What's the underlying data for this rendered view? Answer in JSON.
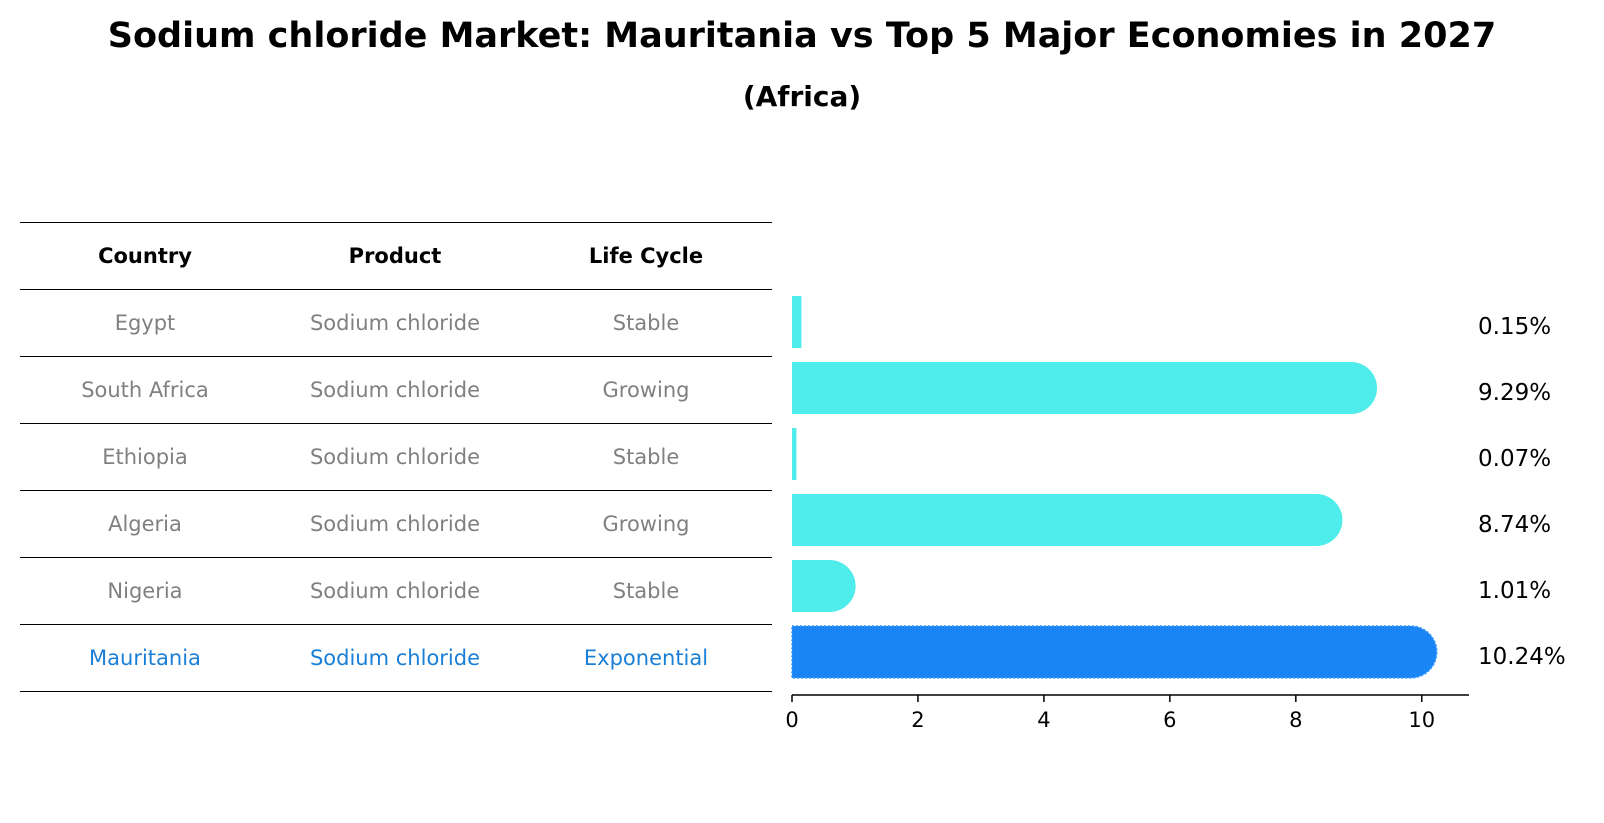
{
  "chart_data": {
    "type": "bar",
    "title": "Sodium chloride Market: Mauritania vs Top 5 Major Economies in 2027",
    "subtitle": "(Africa)",
    "table": {
      "headers": [
        "Country",
        "Product",
        "Life Cycle"
      ],
      "rows": [
        [
          "Egypt",
          "Sodium chloride",
          "Stable"
        ],
        [
          "South Africa",
          "Sodium chloride",
          "Growing"
        ],
        [
          "Ethiopia",
          "Sodium chloride",
          "Stable"
        ],
        [
          "Algeria",
          "Sodium chloride",
          "Growing"
        ],
        [
          "Nigeria",
          "Sodium chloride",
          "Stable"
        ],
        [
          "Mauritania",
          "Sodium chloride",
          "Exponential"
        ]
      ]
    },
    "categories": [
      "Egypt",
      "South Africa",
      "Ethiopia",
      "Algeria",
      "Nigeria",
      "Mauritania"
    ],
    "values": [
      0.15,
      9.29,
      0.07,
      8.74,
      1.01,
      10.24
    ],
    "value_labels": [
      "0.15%",
      "9.29%",
      "0.07%",
      "8.74%",
      "1.01%",
      "10.24%"
    ],
    "highlight": "Mauritania",
    "xlim": [
      0,
      10.75
    ],
    "xticks": [
      0,
      2,
      4,
      6,
      8,
      10
    ],
    "colors": {
      "bar": "#4eecea",
      "highlight": "#1a86f5",
      "highlight_text": "#1a7fd6",
      "muted_text": "#808080"
    }
  }
}
